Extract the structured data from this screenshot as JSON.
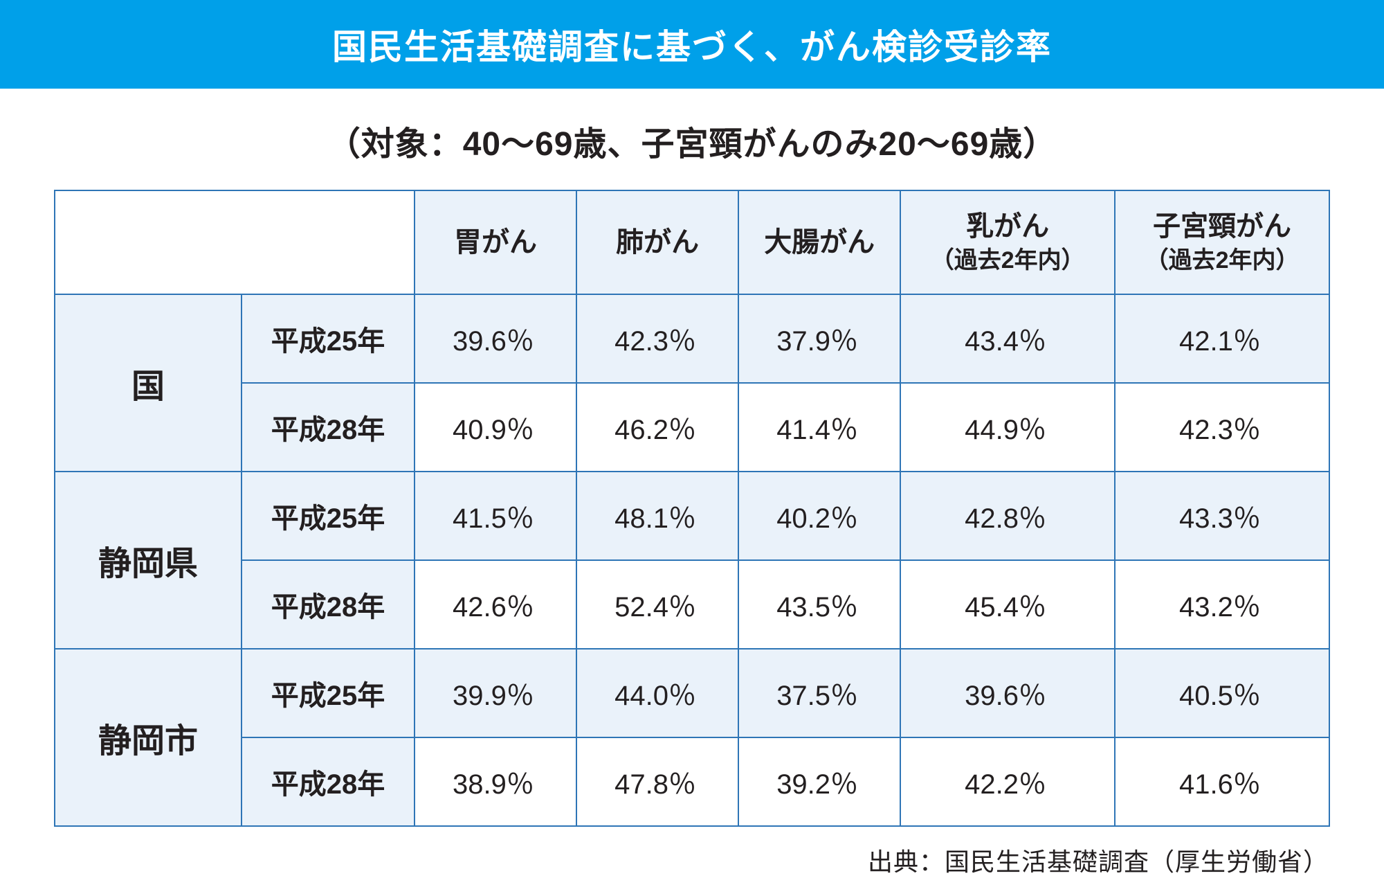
{
  "title": "国民生活基礎調査に基づく、がん検診受診率",
  "subtitle": "（対象：40〜69歳、子宮頸がんのみ20〜69歳）",
  "source": "出典：国民生活基礎調査（厚生労働省）",
  "table": {
    "columns": [
      {
        "label": "胃がん",
        "sub": ""
      },
      {
        "label": "肺がん",
        "sub": ""
      },
      {
        "label": "大腸がん",
        "sub": ""
      },
      {
        "label": "乳がん",
        "sub": "（過去2年内）"
      },
      {
        "label": "子宮頸がん",
        "sub": "（過去2年内）"
      }
    ],
    "regions": [
      {
        "name": "国",
        "rows": [
          {
            "year": "平成25年",
            "values": [
              "39.6％",
              "42.3％",
              "37.9％",
              "43.4％",
              "42.1％"
            ]
          },
          {
            "year": "平成28年",
            "values": [
              "40.9％",
              "46.2％",
              "41.4％",
              "44.9％",
              "42.3％"
            ]
          }
        ]
      },
      {
        "name": "静岡県",
        "rows": [
          {
            "year": "平成25年",
            "values": [
              "41.5％",
              "48.1％",
              "40.2％",
              "42.8％",
              "43.3％"
            ]
          },
          {
            "year": "平成28年",
            "values": [
              "42.6％",
              "52.4％",
              "43.5％",
              "45.4％",
              "43.2％"
            ]
          }
        ]
      },
      {
        "name": "静岡市",
        "rows": [
          {
            "year": "平成25年",
            "values": [
              "39.9％",
              "44.0％",
              "37.5％",
              "39.6％",
              "40.5％"
            ]
          },
          {
            "year": "平成28年",
            "values": [
              "38.9％",
              "47.8％",
              "39.2％",
              "42.2％",
              "41.6％"
            ]
          }
        ]
      }
    ]
  },
  "styling": {
    "title_bg": "#00a0e9",
    "title_color": "#ffffff",
    "title_fontsize": 50,
    "subtitle_fontsize": 48,
    "border_color": "#2e75b6",
    "header_bg": "#eaf2fa",
    "row_odd_bg": "#eaf2fa",
    "row_even_bg": "#ffffff",
    "text_color": "#231f20",
    "cell_fontsize": 40,
    "region_fontsize": 48,
    "source_fontsize": 36
  }
}
